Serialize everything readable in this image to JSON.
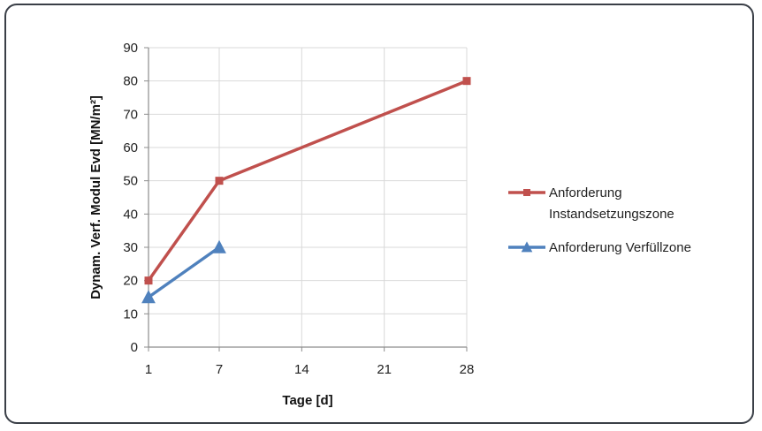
{
  "chart_data": {
    "type": "line",
    "title": "",
    "xlabel": "Tage [d]",
    "ylabel": "Dynam. Verf. Modul Evd [MN/m²]",
    "xlim": [
      1,
      28
    ],
    "ylim": [
      0,
      90
    ],
    "xticks": [
      1,
      7,
      14,
      21,
      28
    ],
    "yticks": [
      0,
      10,
      20,
      30,
      40,
      50,
      60,
      70,
      80,
      90
    ],
    "grid": true,
    "legend_position": "right",
    "series": [
      {
        "name": "Anforderung Instandsetzungszone",
        "name_lines": [
          "Anforderung",
          "Instandsetzungszone"
        ],
        "marker": "square",
        "color": "#c0504d",
        "x": [
          1,
          7,
          28
        ],
        "y": [
          20,
          50,
          80
        ]
      },
      {
        "name": "Anforderung Verfüllzone",
        "name_lines": [
          "Anforderung Verfüllzone"
        ],
        "marker": "triangle",
        "color": "#4f81bd",
        "x": [
          1,
          7
        ],
        "y": [
          15,
          30
        ]
      }
    ]
  }
}
